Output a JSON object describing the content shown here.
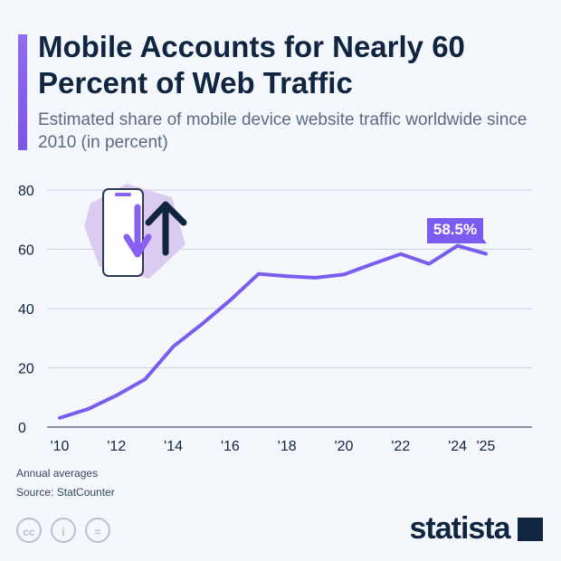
{
  "header": {
    "title": "Mobile Accounts for Nearly 60 Percent of Web Traffic",
    "subtitle": "Estimated share of mobile device website traffic worldwide since 2010 (in percent)"
  },
  "footer": {
    "note": "Annual averages",
    "source": "Source: StatCounter",
    "brand": "statista",
    "license_icons": [
      "cc-icon",
      "attribution-icon",
      "no-derivatives-icon"
    ]
  },
  "colors": {
    "line": "#7b5cf0",
    "title": "#0f2540",
    "grid": "#c9d1db"
  },
  "chart_data": {
    "type": "line",
    "x": [
      2010,
      2011,
      2012,
      2013,
      2014,
      2015,
      2016,
      2017,
      2018,
      2019,
      2020,
      2021,
      2022,
      2023,
      2024,
      2025
    ],
    "values": [
      3.1,
      6.1,
      10.7,
      16.1,
      27.2,
      34.7,
      42.8,
      51.7,
      50.9,
      50.4,
      51.5,
      55,
      58.4,
      55.1,
      61.2,
      58.5
    ],
    "xtick_labels": [
      "'10",
      "'12",
      "'14",
      "'16",
      "'18",
      "'20",
      "'22",
      "'24",
      "'25"
    ],
    "xtick_values": [
      2010,
      2012,
      2014,
      2016,
      2018,
      2020,
      2022,
      2024,
      2025
    ],
    "yticks": [
      0,
      20,
      40,
      60,
      80
    ],
    "ylim": [
      0,
      80
    ],
    "grid": true,
    "annotation": {
      "text": "58.5%",
      "x": 2025
    }
  }
}
